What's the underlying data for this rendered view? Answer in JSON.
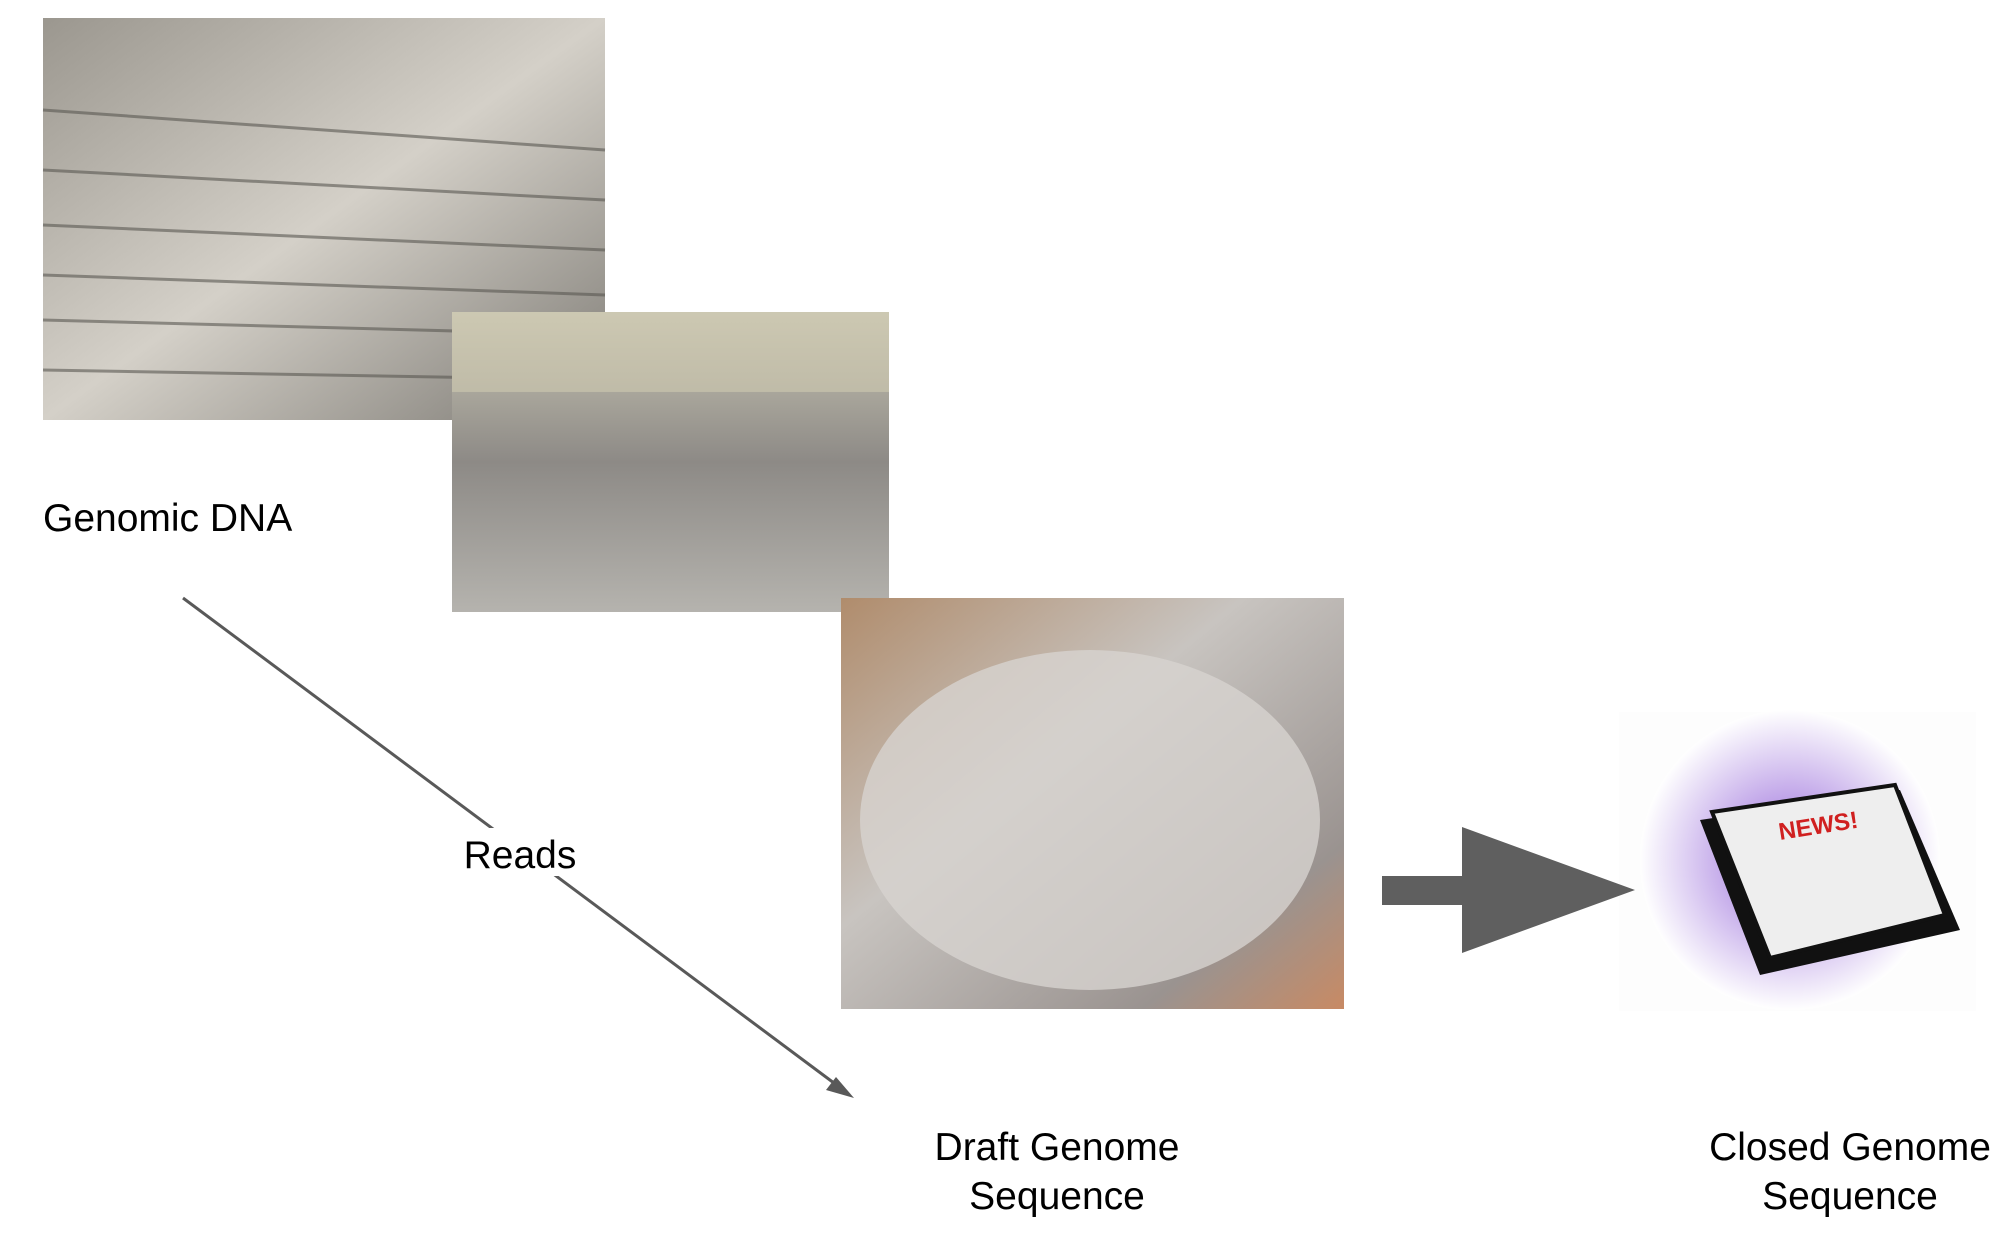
{
  "labels": {
    "genomic": "Genomic DNA",
    "reads": "Reads",
    "draft": [
      "Draft Genome",
      "Sequence"
    ],
    "closed": [
      "Closed Genome",
      "Sequence"
    ]
  }
}
